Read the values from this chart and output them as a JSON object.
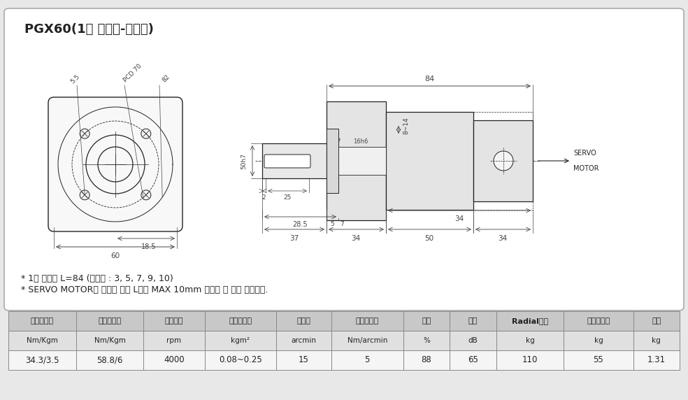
{
  "title": "PGX60(1단 감속기-일반형)",
  "bg_color": "#e8e8e8",
  "card_color": "#ffffff",
  "note1": "* 1단 감속기 L=84 (감속비 : 3, 5, 7, 9, 10)",
  "note2": "* SERVO MOTOR의 종류에 따라 L값이 MAX 10mm 차이가 날 수도 있습니다.",
  "table_headers": [
    "정격토오크",
    "순간토오크",
    "정격입력",
    "관성모멘트",
    "백레시",
    "비틀림강도",
    "효율",
    "소음",
    "Radial부하",
    "축방향부하",
    "무게"
  ],
  "table_units": [
    "Nm/Kgm",
    "Nm/Kgm",
    "rpm",
    "kgm²",
    "arcmin",
    "Nm/arcmin",
    "%",
    "dB",
    "kg",
    "kg",
    "kg"
  ],
  "table_values": [
    "34.3/3.5",
    "58.8/6",
    "4000",
    "0.08~0.25",
    "15",
    "5",
    "88",
    "65",
    "110",
    "55",
    "1.31"
  ],
  "line_color": "#222222",
  "dim_color": "#444444",
  "table_header_bg": "#c8c8c8",
  "table_row1_bg": "#e0e0e0",
  "table_row2_bg": "#f5f5f5",
  "table_border": "#888888"
}
